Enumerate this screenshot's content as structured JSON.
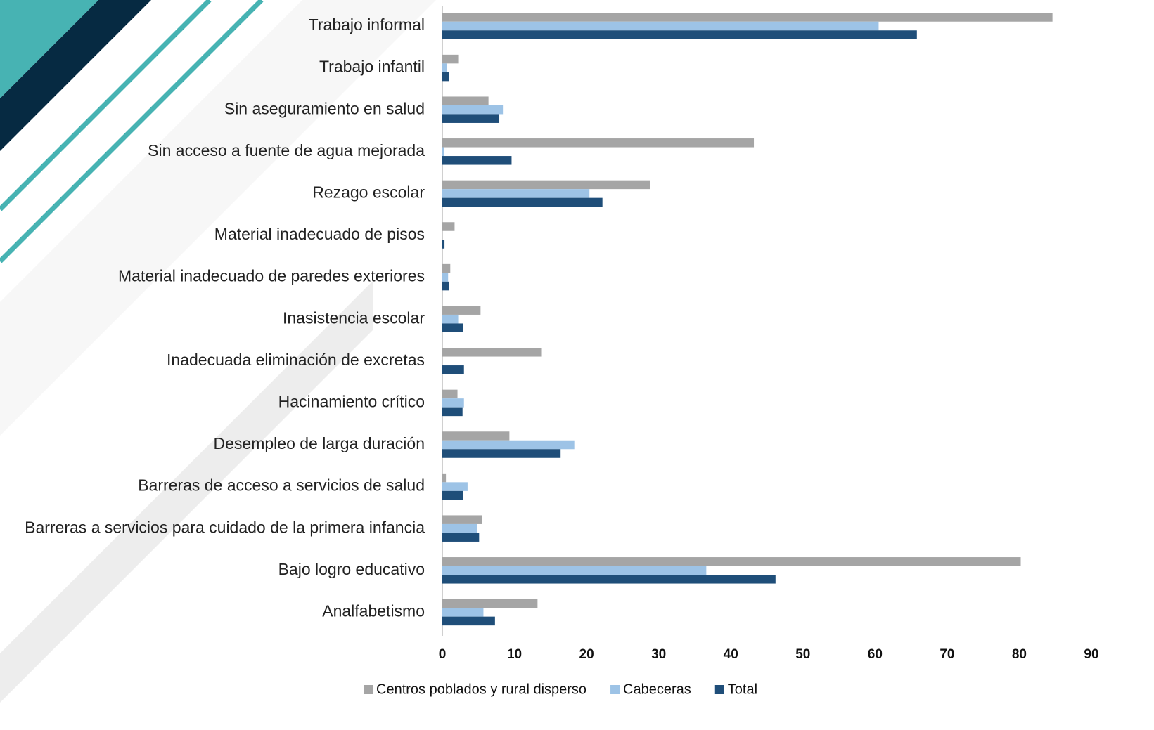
{
  "chart_data": {
    "type": "hbar",
    "categories": [
      "Trabajo informal",
      "Trabajo infantil",
      "Sin aseguramiento en salud",
      "Sin acceso a fuente de agua mejorada",
      "Rezago escolar",
      "Material inadecuado de pisos",
      "Material inadecuado de paredes exteriores",
      "Inasistencia escolar",
      "Inadecuada eliminación de excretas",
      "Hacinamiento crítico",
      "Desempleo de larga duración",
      "Barreras de acceso a servicios de salud",
      "Barreras a servicios para cuidado de la primera infancia",
      "Bajo logro educativo",
      "Analfabetismo"
    ],
    "series": [
      {
        "name": "Centros poblados y rural disperso",
        "color": "#a5a5a5",
        "values": [
          84.6,
          2.2,
          6.4,
          43.2,
          28.8,
          1.7,
          1.1,
          5.3,
          13.8,
          2.1,
          9.3,
          0.5,
          5.5,
          80.2,
          13.2
        ]
      },
      {
        "name": "Cabeceras",
        "color": "#9dc3e6",
        "values": [
          60.5,
          0.6,
          8.4,
          0.2,
          20.4,
          0,
          0.8,
          2.2,
          0,
          3.0,
          18.3,
          3.5,
          4.8,
          36.6,
          5.7
        ]
      },
      {
        "name": "Total",
        "color": "#1f4e79",
        "values": [
          65.8,
          0.9,
          7.9,
          9.6,
          22.2,
          0.3,
          0.9,
          2.9,
          3.0,
          2.8,
          16.4,
          2.9,
          5.1,
          46.2,
          7.3
        ]
      }
    ],
    "xlim": [
      0,
      90
    ],
    "xticks": [
      0,
      10,
      20,
      30,
      40,
      50,
      60,
      70,
      80,
      90
    ],
    "grid": false,
    "legend": "bottom"
  }
}
